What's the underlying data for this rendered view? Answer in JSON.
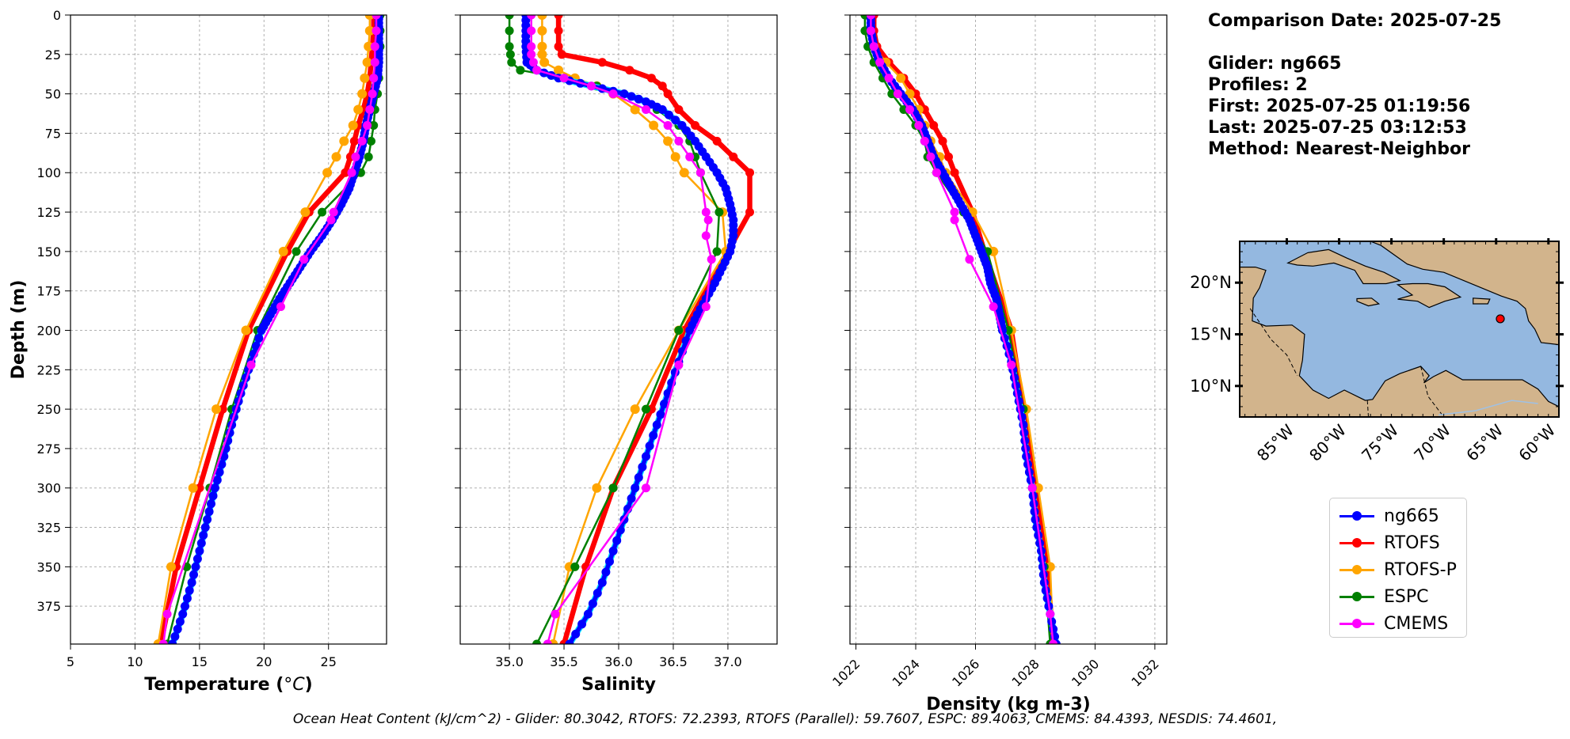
{
  "info": {
    "comparison_date": "Comparison Date: 2025-07-25",
    "glider": "Glider: ng665",
    "profiles": "Profiles: 2",
    "first": "First: 2025-07-25 01:19:56",
    "last": "Last: 2025-07-25 03:12:53",
    "method": "Method: Nearest-Neighbor"
  },
  "caption": "Ocean Heat Content (kJ/cm^2) - Glider: 80.3042,  RTOFS: 72.2393,  RTOFS (Parallel): 59.7607,  ESPC: 89.4063,  CMEMS: 84.4393,  NESDIS: 74.4601,",
  "colors": {
    "ng665": "#0000ff",
    "RTOFS": "#ff0000",
    "RTOFS-P": "#ffa500",
    "ESPC": "#008000",
    "CMEMS": "#ff00ff",
    "glider_shadow": "#00e5ff",
    "land": "#d2b48c",
    "ocean": "#94b8e0",
    "marker": "#ff0000"
  },
  "legend": [
    {
      "name": "ng665",
      "color": "#0000ff"
    },
    {
      "name": "RTOFS",
      "color": "#ff0000"
    },
    {
      "name": "RTOFS-P",
      "color": "#ffa500"
    },
    {
      "name": "ESPC",
      "color": "#008000"
    },
    {
      "name": "CMEMS",
      "color": "#ff00ff"
    }
  ],
  "chart_data": [
    {
      "type": "line",
      "xlabel": "Temperature (°C)",
      "ylabel": "Depth (m)",
      "xlim": [
        5,
        29.5
      ],
      "ylim": [
        399,
        0
      ],
      "xticks": [
        5,
        10,
        15,
        20,
        25
      ],
      "yticks": [
        0,
        25,
        50,
        75,
        100,
        125,
        150,
        175,
        200,
        225,
        250,
        275,
        300,
        325,
        350,
        375
      ],
      "grid": true,
      "series": [
        {
          "name": "ng665",
          "marker_step": 4,
          "depth": [
            0,
            10,
            20,
            30,
            40,
            50,
            60,
            70,
            80,
            90,
            100,
            110,
            120,
            130,
            140,
            150,
            160,
            170,
            180,
            190,
            200,
            220,
            240,
            260,
            280,
            300,
            320,
            340,
            360,
            380,
            399
          ],
          "values": [
            28.9,
            28.9,
            28.9,
            28.9,
            28.8,
            28.5,
            28.2,
            27.9,
            27.7,
            27.4,
            27.0,
            26.6,
            26.0,
            25.3,
            24.5,
            23.6,
            22.8,
            22.0,
            21.2,
            20.5,
            19.8,
            19.0,
            18.2,
            17.5,
            16.9,
            16.2,
            15.6,
            15.0,
            14.4,
            13.7,
            12.9
          ]
        },
        {
          "name": "RTOFS",
          "depth": [
            0,
            10,
            20,
            30,
            40,
            50,
            60,
            70,
            80,
            90,
            100,
            125,
            150,
            200,
            250,
            300,
            350,
            399
          ],
          "values": [
            28.5,
            28.5,
            28.4,
            28.3,
            28.2,
            28.0,
            27.7,
            27.3,
            27.0,
            26.7,
            26.3,
            23.5,
            21.8,
            18.8,
            16.8,
            15.0,
            13.2,
            12.0
          ]
        },
        {
          "name": "RTOFS-P",
          "depth": [
            0,
            10,
            20,
            30,
            40,
            50,
            60,
            70,
            80,
            90,
            100,
            125,
            150,
            200,
            250,
            300,
            350,
            399
          ],
          "values": [
            28.2,
            28.2,
            28.1,
            28.0,
            27.8,
            27.6,
            27.3,
            26.9,
            26.2,
            25.6,
            24.9,
            23.2,
            21.5,
            18.6,
            16.3,
            14.5,
            12.8,
            11.8
          ]
        },
        {
          "name": "ESPC",
          "depth": [
            0,
            10,
            20,
            30,
            40,
            50,
            60,
            70,
            80,
            90,
            100,
            125,
            150,
            200,
            250,
            300,
            350,
            399
          ],
          "values": [
            29.0,
            29.0,
            29.0,
            28.9,
            28.9,
            28.8,
            28.6,
            28.5,
            28.3,
            28.1,
            27.5,
            24.5,
            22.5,
            19.5,
            17.5,
            15.8,
            14.0,
            12.5
          ]
        },
        {
          "name": "CMEMS",
          "depth": [
            0,
            10,
            20,
            30,
            40,
            50,
            60,
            70,
            80,
            90,
            100,
            125,
            130,
            155,
            185,
            222,
            380,
            399
          ],
          "values": [
            28.7,
            28.7,
            28.6,
            28.6,
            28.5,
            28.4,
            28.2,
            28.0,
            27.6,
            27.1,
            26.8,
            25.4,
            25.2,
            23.1,
            21.3,
            19.0,
            12.5,
            12.2
          ]
        }
      ]
    },
    {
      "type": "line",
      "xlabel": "Salinity",
      "xlim": [
        34.55,
        37.45
      ],
      "ylim": [
        399,
        0
      ],
      "xticks": [
        35.0,
        35.5,
        36.0,
        36.5,
        37.0
      ],
      "grid": true,
      "series": [
        {
          "name": "ng665",
          "marker_step": 3,
          "depth": [
            0,
            10,
            20,
            30,
            35,
            40,
            45,
            50,
            55,
            60,
            70,
            80,
            90,
            100,
            110,
            120,
            130,
            140,
            150,
            160,
            170,
            180,
            190,
            200,
            220,
            240,
            260,
            280,
            300,
            320,
            340,
            360,
            380,
            399
          ],
          "values": [
            35.15,
            35.15,
            35.15,
            35.16,
            35.25,
            35.45,
            35.75,
            36.05,
            36.25,
            36.4,
            36.58,
            36.7,
            36.8,
            36.9,
            36.98,
            37.02,
            37.05,
            37.05,
            37.02,
            36.95,
            36.88,
            36.8,
            36.72,
            36.65,
            36.55,
            36.45,
            36.35,
            36.25,
            36.15,
            36.05,
            35.95,
            35.85,
            35.72,
            35.55
          ]
        },
        {
          "name": "RTOFS",
          "depth": [
            0,
            10,
            20,
            25,
            30,
            35,
            40,
            45,
            50,
            60,
            70,
            80,
            90,
            100,
            125,
            150,
            200,
            250,
            300,
            350,
            399
          ],
          "values": [
            35.45,
            35.45,
            35.45,
            35.48,
            35.85,
            36.1,
            36.3,
            36.4,
            36.45,
            36.55,
            36.7,
            36.9,
            37.05,
            37.2,
            37.2,
            37.0,
            36.6,
            36.3,
            35.95,
            35.7,
            35.5
          ]
        },
        {
          "name": "RTOFS-P",
          "depth": [
            0,
            10,
            20,
            25,
            30,
            35,
            40,
            45,
            50,
            60,
            70,
            80,
            90,
            100,
            125,
            150,
            200,
            250,
            300,
            350,
            399
          ],
          "values": [
            35.3,
            35.3,
            35.3,
            35.3,
            35.32,
            35.45,
            35.6,
            35.8,
            35.95,
            36.15,
            36.32,
            36.45,
            36.52,
            36.6,
            36.95,
            36.98,
            36.55,
            36.15,
            35.8,
            35.55,
            35.4
          ]
        },
        {
          "name": "ESPC",
          "depth": [
            0,
            10,
            20,
            25,
            30,
            35,
            40,
            45,
            50,
            60,
            70,
            80,
            90,
            100,
            125,
            150,
            200,
            250,
            300,
            350,
            399
          ],
          "values": [
            35.0,
            35.0,
            35.0,
            35.01,
            35.02,
            35.1,
            35.5,
            35.8,
            36.05,
            36.35,
            36.55,
            36.65,
            36.7,
            36.75,
            36.92,
            36.9,
            36.55,
            36.25,
            35.95,
            35.6,
            35.25
          ]
        },
        {
          "name": "CMEMS",
          "depth": [
            0,
            10,
            20,
            25,
            30,
            35,
            40,
            45,
            50,
            60,
            70,
            80,
            90,
            100,
            125,
            130,
            140,
            155,
            185,
            222,
            300,
            380,
            399
          ],
          "values": [
            35.2,
            35.2,
            35.2,
            35.2,
            35.22,
            35.25,
            35.5,
            35.75,
            35.95,
            36.25,
            36.45,
            36.55,
            36.65,
            36.75,
            36.8,
            36.82,
            36.8,
            36.85,
            36.8,
            36.55,
            36.25,
            35.42,
            35.35
          ]
        }
      ]
    },
    {
      "type": "line",
      "xlabel": "Density (kg m-3)",
      "xlim": [
        1021.8,
        1032.4
      ],
      "ylim": [
        399,
        0
      ],
      "xticks": [
        1022,
        1024,
        1026,
        1028,
        1030,
        1032
      ],
      "grid": true,
      "series": [
        {
          "name": "ng665",
          "marker_step": 4,
          "depth": [
            0,
            10,
            20,
            30,
            40,
            50,
            60,
            70,
            80,
            90,
            100,
            110,
            120,
            130,
            140,
            150,
            160,
            170,
            180,
            190,
            200,
            220,
            240,
            260,
            280,
            300,
            320,
            340,
            360,
            380,
            399
          ],
          "values": [
            1022.5,
            1022.5,
            1022.6,
            1022.8,
            1023.1,
            1023.5,
            1023.9,
            1024.2,
            1024.4,
            1024.6,
            1024.9,
            1025.2,
            1025.5,
            1025.8,
            1026.0,
            1026.2,
            1026.4,
            1026.5,
            1026.7,
            1026.8,
            1026.9,
            1027.2,
            1027.4,
            1027.6,
            1027.7,
            1027.9,
            1028.0,
            1028.2,
            1028.3,
            1028.5,
            1028.7
          ]
        },
        {
          "name": "RTOFS",
          "depth": [
            0,
            10,
            20,
            30,
            40,
            50,
            60,
            70,
            80,
            90,
            100,
            125,
            150,
            200,
            250,
            300,
            350,
            399
          ],
          "values": [
            1022.6,
            1022.6,
            1022.7,
            1023.1,
            1023.6,
            1024.0,
            1024.3,
            1024.6,
            1024.9,
            1025.1,
            1025.3,
            1025.9,
            1026.3,
            1027.2,
            1027.6,
            1028.0,
            1028.4,
            1028.6
          ]
        },
        {
          "name": "RTOFS-P",
          "depth": [
            0,
            10,
            20,
            30,
            40,
            50,
            60,
            70,
            80,
            90,
            100,
            125,
            150,
            200,
            250,
            300,
            350,
            399
          ],
          "values": [
            1022.4,
            1022.4,
            1022.6,
            1023.0,
            1023.5,
            1023.8,
            1024.1,
            1024.3,
            1024.5,
            1024.8,
            1025.0,
            1025.9,
            1026.6,
            1027.2,
            1027.7,
            1028.1,
            1028.5,
            1028.6
          ]
        },
        {
          "name": "ESPC",
          "depth": [
            0,
            10,
            20,
            30,
            40,
            50,
            60,
            70,
            80,
            90,
            100,
            125,
            150,
            200,
            250,
            300,
            350,
            399
          ],
          "values": [
            1022.3,
            1022.3,
            1022.4,
            1022.6,
            1022.9,
            1023.2,
            1023.6,
            1024.0,
            1024.3,
            1024.4,
            1024.7,
            1025.6,
            1026.4,
            1027.1,
            1027.6,
            1027.9,
            1028.3,
            1028.5
          ]
        },
        {
          "name": "CMEMS",
          "depth": [
            0,
            10,
            20,
            30,
            40,
            50,
            60,
            70,
            80,
            90,
            100,
            125,
            130,
            155,
            185,
            222,
            300,
            380,
            399
          ],
          "values": [
            1022.5,
            1022.5,
            1022.6,
            1022.8,
            1023.1,
            1023.4,
            1023.8,
            1024.1,
            1024.3,
            1024.5,
            1024.7,
            1025.3,
            1025.3,
            1025.8,
            1026.6,
            1027.2,
            1027.9,
            1028.5,
            1028.6
          ]
        }
      ]
    }
  ],
  "map": {
    "lon_ticks": [
      "85°W",
      "80°W",
      "75°W",
      "70°W",
      "65°W",
      "60°W"
    ],
    "lat_ticks": [
      "20°N",
      "15°N",
      "10°N"
    ],
    "glider_position": {
      "lon": -64.6,
      "lat": 16.5
    }
  }
}
